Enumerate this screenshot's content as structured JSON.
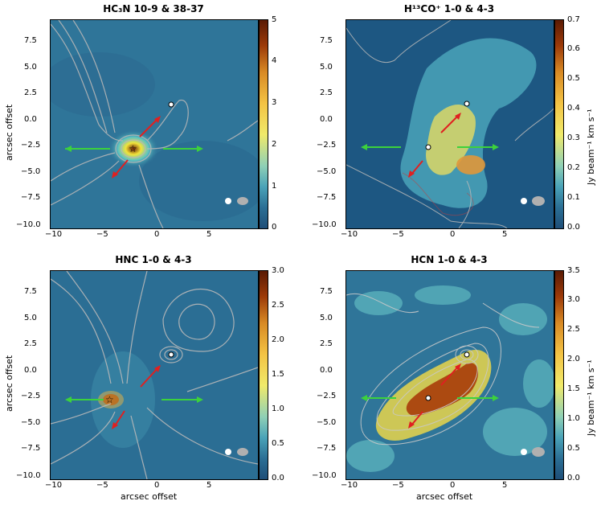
{
  "panels": [
    {
      "title": "HC₃N 10-9 & 38-37",
      "cbar_ticks": [
        "0",
        "1",
        "2",
        "3",
        "4",
        "5"
      ],
      "cbar_label": "",
      "xlabel": "",
      "ylabel": "arcsec offset",
      "colors": {
        "bg": "#2b6f95",
        "hot": "#7a2c0a"
      }
    },
    {
      "title": "H¹³CO⁺ 1-0 & 4-3",
      "cbar_ticks": [
        "0.0",
        "0.1",
        "0.2",
        "0.3",
        "0.4",
        "0.5",
        "0.6",
        "0.7"
      ],
      "cbar_label": "Jy beam⁻¹ km s⁻¹",
      "xlabel": "",
      "ylabel": "",
      "colors": {
        "bg": "#1f5a84",
        "hot": "#f1d24a"
      }
    },
    {
      "title": "HNC 1-0 & 4-3",
      "cbar_ticks": [
        "0.0",
        "0.5",
        "1.0",
        "1.5",
        "2.0",
        "2.5",
        "3.0"
      ],
      "cbar_label": "",
      "xlabel": "arcsec offset",
      "ylabel": "arcsec offset",
      "colors": {
        "bg": "#2a6d93",
        "hot": "#8a3008"
      }
    },
    {
      "title": "HCN 1-0 & 4-3",
      "cbar_ticks": [
        "0.0",
        "0.5",
        "1.0",
        "1.5",
        "2.0",
        "2.5",
        "3.0",
        "3.5"
      ],
      "cbar_label": "Jy beam⁻¹ km s⁻¹",
      "xlabel": "arcsec offset",
      "ylabel": "",
      "colors": {
        "bg": "#2b6f95",
        "hot": "#9b3608"
      }
    }
  ],
  "x_ticks": [
    "−10",
    "−5",
    "0",
    "5"
  ],
  "y_ticks": [
    "7.5",
    "5.0",
    "2.5",
    "0.0",
    "−2.5",
    "−5.0",
    "−7.5",
    "−10.0"
  ]
}
